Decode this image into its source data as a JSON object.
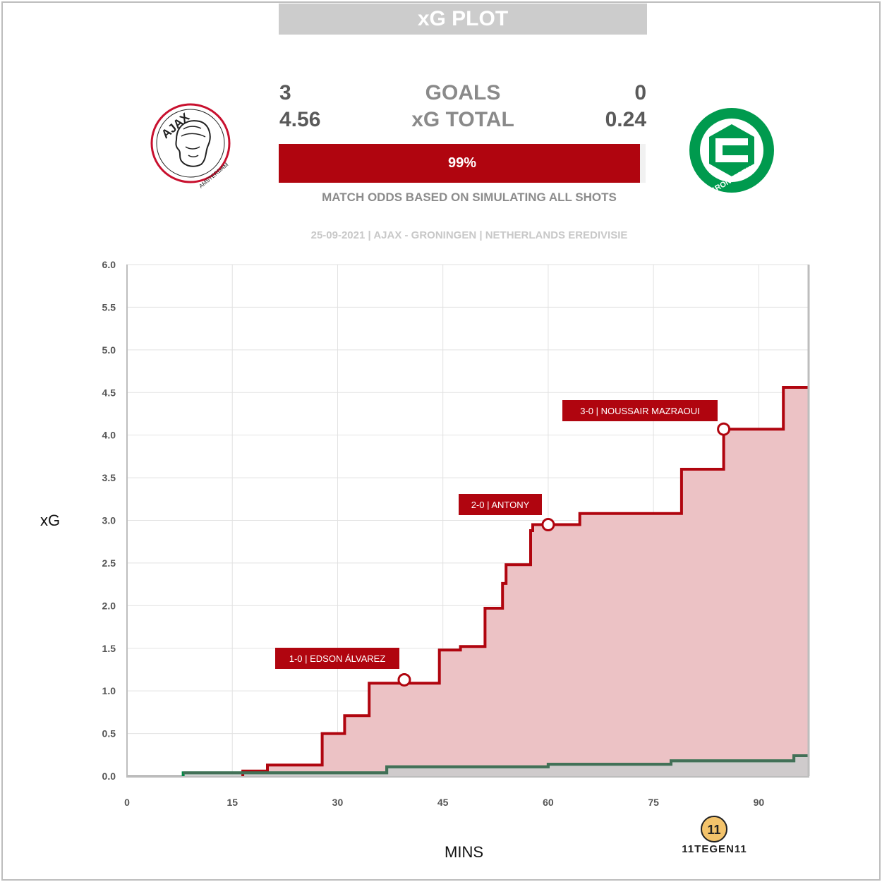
{
  "header": {
    "title": "xG PLOT"
  },
  "home": {
    "name": "Ajax",
    "goals": "3",
    "xg": "4.56",
    "logo_ring_text": "AJAX",
    "logo_sub_text": "AMSTERDAM",
    "color": "#b0050f"
  },
  "away": {
    "name": "FC Groningen",
    "goals": "0",
    "xg": "0.24",
    "logo_text": "FC GRONINGEN",
    "color": "#008a45"
  },
  "labels": {
    "goals": "GOALS",
    "xg_total": "xG TOTAL"
  },
  "odds": {
    "home_win_pct": 99,
    "label": "99%",
    "caption": "MATCH ODDS BASED ON SIMULATING ALL SHOTS"
  },
  "match_info": "25-09-2021 | AJAX - GRONINGEN | NETHERLANDS EREDIVISIE",
  "brand": {
    "name": "11TEGEN11",
    "monogram": "11"
  },
  "chart_data": {
    "type": "line",
    "step": true,
    "xlabel": "MINS",
    "ylabel": "xG",
    "xlim": [
      0,
      97
    ],
    "ylim": [
      0,
      6
    ],
    "x_ticks": [
      0,
      15,
      30,
      45,
      60,
      75,
      90
    ],
    "y_ticks": [
      "0.0",
      "0.5",
      "1.0",
      "1.5",
      "2.0",
      "2.5",
      "3.0",
      "3.5",
      "4.0",
      "4.5",
      "5.0",
      "5.5",
      "6.0"
    ],
    "grid": true,
    "series": [
      {
        "name": "Ajax",
        "color": "#b0050f",
        "fill": "#ecc2c5",
        "x": [
          16.5,
          20,
          27.8,
          31,
          34.5,
          44.5,
          47.5,
          51,
          53.5,
          54,
          57.5,
          57.8,
          64.5,
          79,
          85,
          93.5,
          97
        ],
        "y": [
          0.06,
          0.13,
          0.5,
          0.71,
          1.09,
          1.48,
          1.52,
          1.97,
          2.26,
          2.48,
          2.88,
          2.95,
          3.08,
          3.6,
          4.07,
          4.56,
          4.56
        ]
      },
      {
        "name": "FC Groningen",
        "color": "#008a45",
        "fill": "#cccccc",
        "x": [
          8,
          37,
          60,
          77.5,
          95,
          97
        ],
        "y": [
          0.04,
          0.11,
          0.14,
          0.18,
          0.24,
          0.24
        ]
      }
    ],
    "annotations": [
      {
        "text": "1-0 | EDSON ÁLVAREZ",
        "x": 39.5,
        "y": 1.13
      },
      {
        "text": "2-0 | ANTONY",
        "x": 60,
        "y": 2.95
      },
      {
        "text": "3-0 | NOUSSAIR MAZRAOUI",
        "x": 85,
        "y": 4.07
      }
    ]
  }
}
